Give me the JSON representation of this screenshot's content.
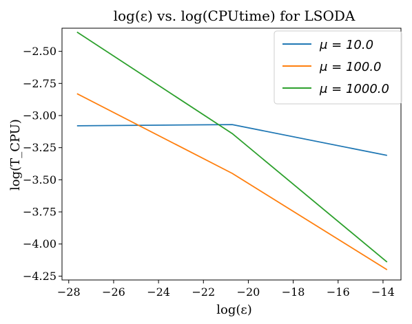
{
  "chart_data": {
    "type": "line",
    "title": "log(ε) vs. log(CPUtime) for LSODA",
    "xlabel": "log(ε)",
    "ylabel": "log(T_CPU)",
    "xlim": [
      -28.3,
      -13.2
    ],
    "ylim": [
      -4.28,
      -2.32
    ],
    "xticks": [
      -28,
      -26,
      -24,
      -22,
      -20,
      -18,
      -16,
      -14
    ],
    "yticks": [
      -4.25,
      -4.0,
      -3.75,
      -3.5,
      -3.25,
      -3.0,
      -2.75,
      -2.5
    ],
    "xtick_labels": [
      "−28",
      "−26",
      "−24",
      "−22",
      "−20",
      "−18",
      "−16",
      "−14"
    ],
    "ytick_labels": [
      "−4.25",
      "−4.00",
      "−3.75",
      "−3.50",
      "−3.25",
      "−3.00",
      "−2.75",
      "−2.50"
    ],
    "grid": false,
    "legend_position": "top-right",
    "x": [
      -27.63,
      -20.72,
      -13.82
    ],
    "series": [
      {
        "name": "μ = 10.0",
        "color": "#1f77b4",
        "values": [
          -3.08,
          -3.07,
          -3.31
        ]
      },
      {
        "name": "μ = 100.0",
        "color": "#ff7f0e",
        "values": [
          -2.83,
          -3.45,
          -4.2
        ]
      },
      {
        "name": "μ = 1000.0",
        "color": "#2ca02c",
        "values": [
          -2.35,
          -3.14,
          -4.14
        ]
      }
    ]
  }
}
